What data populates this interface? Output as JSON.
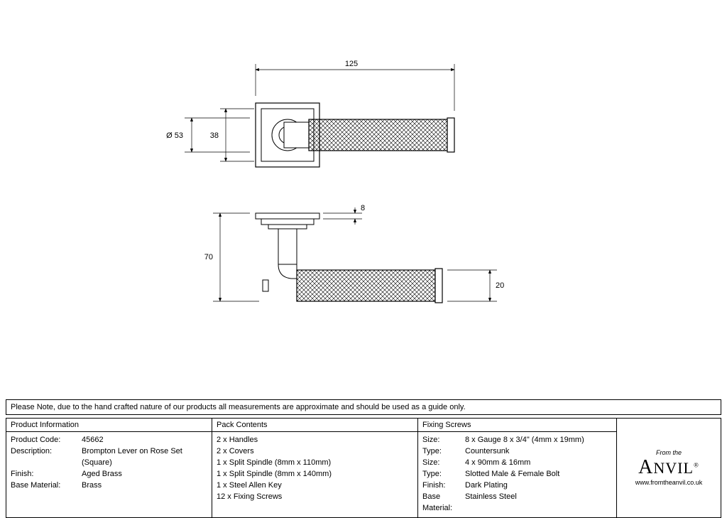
{
  "drawing": {
    "line_color": "#000000",
    "line_width": 1,
    "dims": {
      "width_overall": "125",
      "diameter_lever": "Ø 53",
      "rose_inner": "38",
      "height_side": "70",
      "rose_thickness": "8",
      "lever_dia_side": "20"
    },
    "font_size_dims": 11
  },
  "note": "Please Note, due to the hand crafted nature of our products all measurements are approximate and should be used as a guide only.",
  "product_info": {
    "header": "Product Information",
    "rows": [
      {
        "k": "Product Code:",
        "v": "45662"
      },
      {
        "k": "Description:",
        "v": "Brompton Lever on Rose Set (Square)"
      },
      {
        "k": "Finish:",
        "v": "Aged Brass"
      },
      {
        "k": "Base Material:",
        "v": "Brass"
      }
    ]
  },
  "pack": {
    "header": "Pack Contents",
    "items": [
      "2 x Handles",
      "2 x Covers",
      "1 x Split Spindle (8mm x 110mm)",
      "1 x Split Spindle (8mm x 140mm)",
      "1 x Steel Allen Key",
      "12 x Fixing Screws"
    ]
  },
  "fixing": {
    "header": "Fixing Screws",
    "rows": [
      {
        "k": "Size:",
        "v": "8 x Gauge 8 x 3/4\" (4mm x 19mm)"
      },
      {
        "k": "Type:",
        "v": "Countersunk"
      },
      {
        "k": "Size:",
        "v": "4 x 90mm & 16mm"
      },
      {
        "k": "Type:",
        "v": "Slotted Male & Female Bolt"
      },
      {
        "k": "Finish:",
        "v": "Dark Plating"
      },
      {
        "k": "Base Material:",
        "v": "Stainless Steel"
      }
    ]
  },
  "brand": {
    "from": "From the",
    "name_html": "Anvil",
    "url": "www.fromtheanvil.co.uk"
  }
}
